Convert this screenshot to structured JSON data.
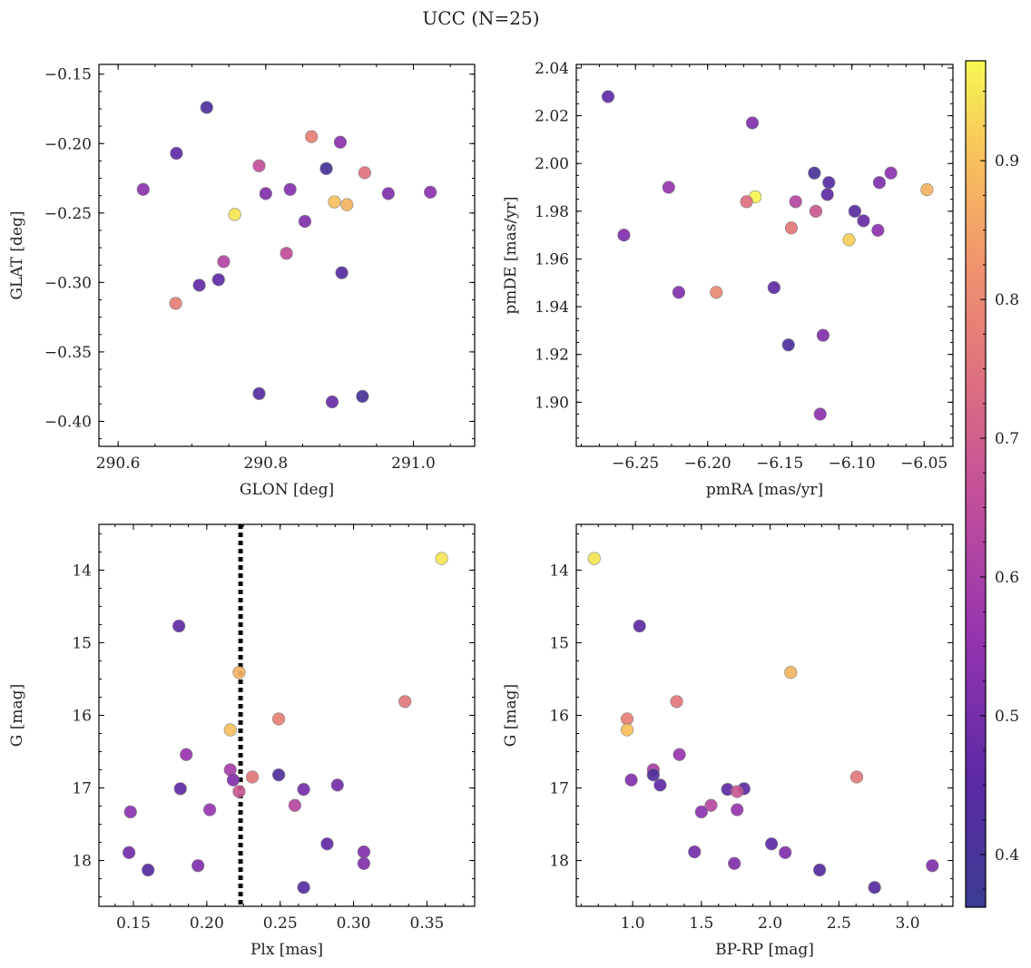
{
  "title": "UCC (N=25)",
  "colorbar": {
    "min": 0.362,
    "max": 0.972,
    "ticks": [
      0.4,
      0.5,
      0.6,
      0.7,
      0.8,
      0.9
    ],
    "tick_labels": [
      "0.4",
      "0.5",
      "0.6",
      "0.7",
      "0.8",
      "0.9"
    ]
  },
  "chart_data": [
    {
      "type": "scatter",
      "xlabel": "GLON [deg]",
      "ylabel": "GLAT [deg]",
      "xlim": [
        290.574,
        291.083
      ],
      "ylim": [
        -0.418,
        -0.143
      ],
      "invert_y": false,
      "xticks": [
        290.6,
        290.8,
        291.0
      ],
      "xtick_labels": [
        "290.6",
        "290.8",
        "291.0"
      ],
      "yticks": [
        -0.4,
        -0.35,
        -0.3,
        -0.25,
        -0.2,
        -0.15
      ],
      "ytick_labels": [
        "−0.40",
        "−0.35",
        "−0.30",
        "−0.25",
        "−0.20",
        "−0.15"
      ],
      "points": [
        {
          "x": 290.72,
          "y": -0.174,
          "c": 0.42
        },
        {
          "x": 290.679,
          "y": -0.207,
          "c": 0.46
        },
        {
          "x": 290.634,
          "y": -0.233,
          "c": 0.54
        },
        {
          "x": 290.758,
          "y": -0.251,
          "c": 0.95
        },
        {
          "x": 290.791,
          "y": -0.216,
          "c": 0.66
        },
        {
          "x": 290.8,
          "y": -0.236,
          "c": 0.52
        },
        {
          "x": 290.833,
          "y": -0.233,
          "c": 0.52
        },
        {
          "x": 290.862,
          "y": -0.195,
          "c": 0.78
        },
        {
          "x": 290.901,
          "y": -0.199,
          "c": 0.54
        },
        {
          "x": 290.882,
          "y": -0.218,
          "c": 0.4
        },
        {
          "x": 290.934,
          "y": -0.221,
          "c": 0.75
        },
        {
          "x": 290.893,
          "y": -0.242,
          "c": 0.9
        },
        {
          "x": 290.91,
          "y": -0.244,
          "c": 0.88
        },
        {
          "x": 290.966,
          "y": -0.236,
          "c": 0.52
        },
        {
          "x": 291.023,
          "y": -0.235,
          "c": 0.54
        },
        {
          "x": 290.853,
          "y": -0.256,
          "c": 0.52
        },
        {
          "x": 290.828,
          "y": -0.279,
          "c": 0.65
        },
        {
          "x": 290.743,
          "y": -0.285,
          "c": 0.62
        },
        {
          "x": 290.736,
          "y": -0.298,
          "c": 0.46
        },
        {
          "x": 290.71,
          "y": -0.302,
          "c": 0.46
        },
        {
          "x": 290.678,
          "y": -0.315,
          "c": 0.78
        },
        {
          "x": 290.903,
          "y": -0.293,
          "c": 0.44
        },
        {
          "x": 290.791,
          "y": -0.38,
          "c": 0.44
        },
        {
          "x": 290.89,
          "y": -0.386,
          "c": 0.48
        },
        {
          "x": 290.931,
          "y": -0.382,
          "c": 0.4
        }
      ]
    },
    {
      "type": "scatter",
      "xlabel": "pmRA [mas/yr]",
      "ylabel": "pmDE [mas/yr]",
      "xlim": [
        -6.291,
        -6.03
      ],
      "ylim": [
        1.8815,
        2.0415
      ],
      "invert_y": false,
      "xticks": [
        -6.25,
        -6.2,
        -6.15,
        -6.1,
        -6.05
      ],
      "xtick_labels": [
        "−6.25",
        "−6.20",
        "−6.15",
        "−6.10",
        "−6.05"
      ],
      "yticks": [
        1.9,
        1.92,
        1.94,
        1.96,
        1.98,
        2.0,
        2.02,
        2.04
      ],
      "ytick_labels": [
        "1.90",
        "1.92",
        "1.94",
        "1.96",
        "1.98",
        "2.00",
        "2.02",
        "2.04"
      ],
      "points": [
        {
          "x": -6.269,
          "y": 2.028,
          "c": 0.46
        },
        {
          "x": -6.169,
          "y": 2.017,
          "c": 0.52
        },
        {
          "x": -6.227,
          "y": 1.99,
          "c": 0.56
        },
        {
          "x": -6.258,
          "y": 1.97,
          "c": 0.52
        },
        {
          "x": -6.22,
          "y": 1.946,
          "c": 0.52
        },
        {
          "x": -6.194,
          "y": 1.946,
          "c": 0.8
        },
        {
          "x": -6.167,
          "y": 1.986,
          "c": 0.97
        },
        {
          "x": -6.173,
          "y": 1.984,
          "c": 0.74
        },
        {
          "x": -6.139,
          "y": 1.984,
          "c": 0.63
        },
        {
          "x": -6.142,
          "y": 1.973,
          "c": 0.76
        },
        {
          "x": -6.126,
          "y": 1.996,
          "c": 0.4
        },
        {
          "x": -6.116,
          "y": 1.992,
          "c": 0.44
        },
        {
          "x": -6.117,
          "y": 1.987,
          "c": 0.46
        },
        {
          "x": -6.125,
          "y": 1.98,
          "c": 0.68
        },
        {
          "x": -6.098,
          "y": 1.98,
          "c": 0.44
        },
        {
          "x": -6.092,
          "y": 1.976,
          "c": 0.48
        },
        {
          "x": -6.081,
          "y": 1.992,
          "c": 0.52
        },
        {
          "x": -6.073,
          "y": 1.996,
          "c": 0.54
        },
        {
          "x": -6.082,
          "y": 1.972,
          "c": 0.54
        },
        {
          "x": -6.102,
          "y": 1.968,
          "c": 0.92
        },
        {
          "x": -6.048,
          "y": 1.989,
          "c": 0.88
        },
        {
          "x": -6.154,
          "y": 1.948,
          "c": 0.46
        },
        {
          "x": -6.12,
          "y": 1.928,
          "c": 0.52
        },
        {
          "x": -6.144,
          "y": 1.924,
          "c": 0.42
        },
        {
          "x": -6.122,
          "y": 1.895,
          "c": 0.54
        }
      ]
    },
    {
      "type": "scatter",
      "xlabel": "Plx [mas]",
      "ylabel": "G [mag]",
      "xlim": [
        0.1265,
        0.3825
      ],
      "ylim": [
        18.63,
        13.37
      ],
      "invert_y": true,
      "vline": {
        "x": 0.223,
        "style": "dotted"
      },
      "xticks": [
        0.15,
        0.2,
        0.25,
        0.3,
        0.35
      ],
      "xtick_labels": [
        "0.15",
        "0.20",
        "0.25",
        "0.30",
        "0.35"
      ],
      "yticks": [
        14,
        15,
        16,
        17,
        18
      ],
      "ytick_labels": [
        "14",
        "15",
        "16",
        "17",
        "18"
      ],
      "points": [
        {
          "x": 0.36,
          "y": 13.84,
          "c": 0.95
        },
        {
          "x": 0.181,
          "y": 14.77,
          "c": 0.46
        },
        {
          "x": 0.222,
          "y": 15.41,
          "c": 0.88
        },
        {
          "x": 0.335,
          "y": 15.81,
          "c": 0.76
        },
        {
          "x": 0.249,
          "y": 16.05,
          "c": 0.78
        },
        {
          "x": 0.216,
          "y": 16.2,
          "c": 0.9
        },
        {
          "x": 0.186,
          "y": 16.54,
          "c": 0.56
        },
        {
          "x": 0.216,
          "y": 16.75,
          "c": 0.6
        },
        {
          "x": 0.231,
          "y": 16.85,
          "c": 0.76
        },
        {
          "x": 0.218,
          "y": 16.89,
          "c": 0.52
        },
        {
          "x": 0.249,
          "y": 16.82,
          "c": 0.42
        },
        {
          "x": 0.182,
          "y": 17.01,
          "c": 0.46
        },
        {
          "x": 0.222,
          "y": 17.05,
          "c": 0.68
        },
        {
          "x": 0.266,
          "y": 17.02,
          "c": 0.5
        },
        {
          "x": 0.289,
          "y": 16.96,
          "c": 0.5
        },
        {
          "x": 0.148,
          "y": 17.33,
          "c": 0.54
        },
        {
          "x": 0.202,
          "y": 17.3,
          "c": 0.56
        },
        {
          "x": 0.26,
          "y": 17.24,
          "c": 0.63
        },
        {
          "x": 0.282,
          "y": 17.77,
          "c": 0.46
        },
        {
          "x": 0.147,
          "y": 17.89,
          "c": 0.5
        },
        {
          "x": 0.307,
          "y": 17.88,
          "c": 0.52
        },
        {
          "x": 0.194,
          "y": 18.07,
          "c": 0.52
        },
        {
          "x": 0.307,
          "y": 18.04,
          "c": 0.52
        },
        {
          "x": 0.16,
          "y": 18.13,
          "c": 0.44
        },
        {
          "x": 0.266,
          "y": 18.37,
          "c": 0.44
        }
      ]
    },
    {
      "type": "scatter",
      "xlabel": "BP-RP [mag]",
      "ylabel": "G [mag]",
      "xlim": [
        0.59,
        3.33
      ],
      "ylim": [
        18.63,
        13.37
      ],
      "invert_y": true,
      "xticks": [
        1.0,
        1.5,
        2.0,
        2.5,
        3.0
      ],
      "xtick_labels": [
        "1.0",
        "1.5",
        "2.0",
        "2.5",
        "3.0"
      ],
      "yticks": [
        14,
        15,
        16,
        17,
        18
      ],
      "ytick_labels": [
        "14",
        "15",
        "16",
        "17",
        "18"
      ],
      "points": [
        {
          "x": 0.72,
          "y": 13.84,
          "c": 0.95
        },
        {
          "x": 1.05,
          "y": 14.77,
          "c": 0.46
        },
        {
          "x": 2.15,
          "y": 15.41,
          "c": 0.88
        },
        {
          "x": 1.32,
          "y": 15.81,
          "c": 0.76
        },
        {
          "x": 0.96,
          "y": 16.05,
          "c": 0.78
        },
        {
          "x": 0.96,
          "y": 16.2,
          "c": 0.9
        },
        {
          "x": 1.34,
          "y": 16.54,
          "c": 0.56
        },
        {
          "x": 1.15,
          "y": 16.75,
          "c": 0.6
        },
        {
          "x": 1.15,
          "y": 16.82,
          "c": 0.42
        },
        {
          "x": 0.99,
          "y": 16.89,
          "c": 0.52
        },
        {
          "x": 1.2,
          "y": 16.96,
          "c": 0.46
        },
        {
          "x": 1.69,
          "y": 17.02,
          "c": 0.46
        },
        {
          "x": 1.81,
          "y": 17.01,
          "c": 0.46
        },
        {
          "x": 1.76,
          "y": 17.05,
          "c": 0.68
        },
        {
          "x": 2.63,
          "y": 16.85,
          "c": 0.76
        },
        {
          "x": 1.57,
          "y": 17.24,
          "c": 0.63
        },
        {
          "x": 1.5,
          "y": 17.33,
          "c": 0.54
        },
        {
          "x": 1.76,
          "y": 17.3,
          "c": 0.56
        },
        {
          "x": 1.45,
          "y": 17.88,
          "c": 0.5
        },
        {
          "x": 2.01,
          "y": 17.77,
          "c": 0.46
        },
        {
          "x": 2.11,
          "y": 17.89,
          "c": 0.52
        },
        {
          "x": 1.74,
          "y": 18.04,
          "c": 0.52
        },
        {
          "x": 2.36,
          "y": 18.13,
          "c": 0.44
        },
        {
          "x": 3.18,
          "y": 18.07,
          "c": 0.52
        },
        {
          "x": 2.76,
          "y": 18.37,
          "c": 0.44
        }
      ]
    }
  ]
}
